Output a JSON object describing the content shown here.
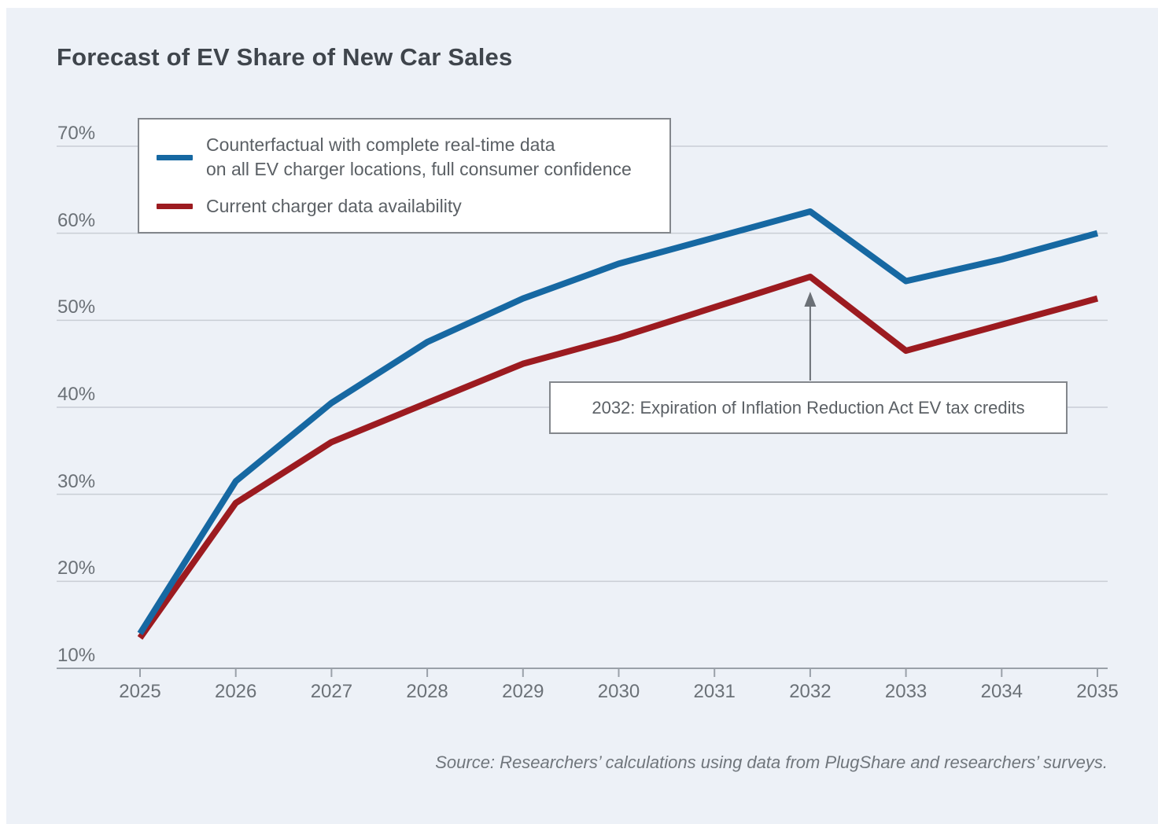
{
  "title": "Forecast of EV Share of New Car Sales",
  "source": "Source: Researchers’ calculations using data from PlugShare and researchers’ surveys.",
  "colors": {
    "background": "#edf1f7",
    "counterfactual_blue": "#1668a2",
    "current_red": "#9c1b20",
    "gridline": "#c9ced5",
    "axis": "#9aa1a9",
    "label_gray": "#6b7177",
    "text_gray": "#5b6065",
    "title_gray": "#3f454c",
    "box_border": "#83878c",
    "arrow_gray": "#6b7076"
  },
  "legend": {
    "items": [
      {
        "line1": "Counterfactual with complete real-time data",
        "line2": "on all EV charger locations, full consumer confidence",
        "color_key": "counterfactual_blue"
      },
      {
        "line1": "Current charger data availability",
        "line2": "",
        "color_key": "current_red"
      }
    ]
  },
  "annotation": {
    "text": "2032: Expiration of Inflation Reduction Act EV tax credits",
    "target_year": 2032
  },
  "y_axis": {
    "tick_labels": [
      "70%",
      "60%",
      "50%",
      "40%",
      "30%",
      "20%",
      "10%"
    ],
    "min": 10,
    "max": 70,
    "step": 10,
    "unit": "%"
  },
  "x_axis": {
    "tick_labels": [
      "2025",
      "2026",
      "2027",
      "2028",
      "2029",
      "2030",
      "2031",
      "2032",
      "2033",
      "2034",
      "2035"
    ]
  },
  "chart_data": {
    "type": "line",
    "title": "Forecast of EV Share of New Car Sales",
    "x": [
      2025,
      2026,
      2027,
      2028,
      2029,
      2030,
      2031,
      2032,
      2033,
      2034,
      2035
    ],
    "series": [
      {
        "name": "Counterfactual with complete real-time data on all EV charger locations, full consumer confidence",
        "color": "#1668a2",
        "values": [
          14,
          31.5,
          40.5,
          47.5,
          52.5,
          56.5,
          59.5,
          62.5,
          54.5,
          57,
          60
        ]
      },
      {
        "name": "Current charger data availability",
        "color": "#9c1b20",
        "values": [
          13.5,
          29,
          36,
          40.5,
          45,
          48,
          51.5,
          55,
          46.5,
          49.5,
          52.5
        ]
      }
    ],
    "ylim": [
      10,
      70
    ],
    "y_ticks": [
      10,
      20,
      30,
      40,
      50,
      60,
      70
    ],
    "grid": true,
    "legend_position": "top-left",
    "annotations": [
      {
        "text": "2032: Expiration of Inflation Reduction Act EV tax credits",
        "x": 2032,
        "points_to_series": "Current charger data availability"
      }
    ]
  }
}
